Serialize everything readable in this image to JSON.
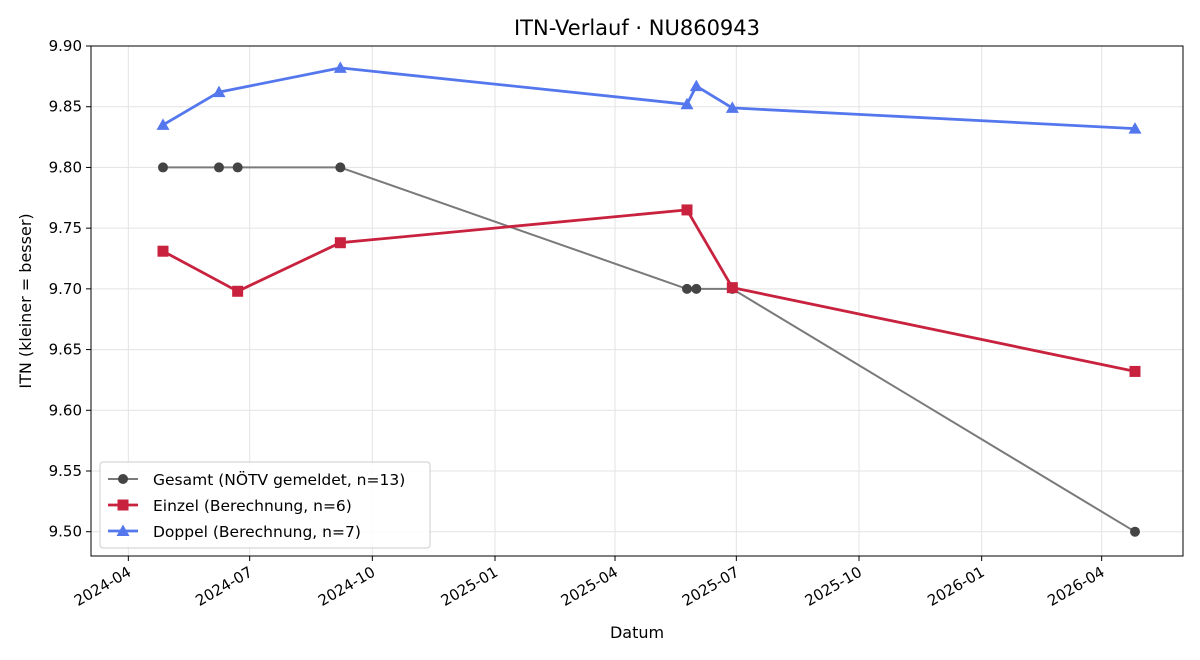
{
  "chart_data": {
    "type": "line",
    "title": "ITN-Verlauf · NU860943",
    "xlabel": "Datum",
    "ylabel": "ITN  (kleiner = besser)",
    "xlim": [
      "2024-03-04",
      "2026-06-01"
    ],
    "ylim": [
      9.48,
      9.9
    ],
    "grid": true,
    "legend_position": "lower-left",
    "x_ticks": [
      {
        "date": "2024-04-01",
        "label": "2024-04"
      },
      {
        "date": "2024-07-01",
        "label": "2024-07"
      },
      {
        "date": "2024-10-01",
        "label": "2024-10"
      },
      {
        "date": "2025-01-01",
        "label": "2025-01"
      },
      {
        "date": "2025-04-01",
        "label": "2025-04"
      },
      {
        "date": "2025-07-01",
        "label": "2025-07"
      },
      {
        "date": "2025-10-01",
        "label": "2025-10"
      },
      {
        "date": "2026-01-01",
        "label": "2026-01"
      },
      {
        "date": "2026-04-01",
        "label": "2026-04"
      }
    ],
    "y_ticks": [
      {
        "value": 9.5,
        "label": "9.50"
      },
      {
        "value": 9.55,
        "label": "9.55"
      },
      {
        "value": 9.6,
        "label": "9.60"
      },
      {
        "value": 9.65,
        "label": "9.65"
      },
      {
        "value": 9.7,
        "label": "9.70"
      },
      {
        "value": 9.75,
        "label": "9.75"
      },
      {
        "value": 9.8,
        "label": "9.80"
      },
      {
        "value": 9.85,
        "label": "9.85"
      },
      {
        "value": 9.9,
        "label": "9.90"
      }
    ],
    "series": [
      {
        "name": "Gesamt (NÖTV gemeldet, n=13)",
        "color": "#7a7a7a",
        "marker_color": "#444444",
        "marker": "circle",
        "points": [
          {
            "x": "2024-04-27",
            "y": 9.8
          },
          {
            "x": "2024-06-08",
            "y": 9.8
          },
          {
            "x": "2024-06-22",
            "y": 9.8
          },
          {
            "x": "2024-09-07",
            "y": 9.8
          },
          {
            "x": "2025-05-25",
            "y": 9.7
          },
          {
            "x": "2025-06-01",
            "y": 9.7
          },
          {
            "x": "2025-06-28",
            "y": 9.7
          },
          {
            "x": "2026-04-26",
            "y": 9.5
          }
        ]
      },
      {
        "name": "Einzel (Berechnung, n=6)",
        "color": "#c8223f",
        "marker_color": "#c8223f",
        "marker": "square",
        "points": [
          {
            "x": "2024-04-27",
            "y": 9.731
          },
          {
            "x": "2024-06-22",
            "y": 9.698
          },
          {
            "x": "2024-09-07",
            "y": 9.738
          },
          {
            "x": "2025-05-25",
            "y": 9.765
          },
          {
            "x": "2025-06-28",
            "y": 9.701
          },
          {
            "x": "2026-04-26",
            "y": 9.632
          }
        ]
      },
      {
        "name": "Doppel (Berechnung, n=7)",
        "color": "#5577ee",
        "marker_color": "#5577ee",
        "marker": "triangle",
        "points": [
          {
            "x": "2024-04-27",
            "y": 9.835
          },
          {
            "x": "2024-06-08",
            "y": 9.862
          },
          {
            "x": "2024-09-07",
            "y": 9.882
          },
          {
            "x": "2025-05-25",
            "y": 9.852
          },
          {
            "x": "2025-06-01",
            "y": 9.867
          },
          {
            "x": "2025-06-28",
            "y": 9.849
          },
          {
            "x": "2026-04-26",
            "y": 9.832
          }
        ]
      }
    ]
  }
}
